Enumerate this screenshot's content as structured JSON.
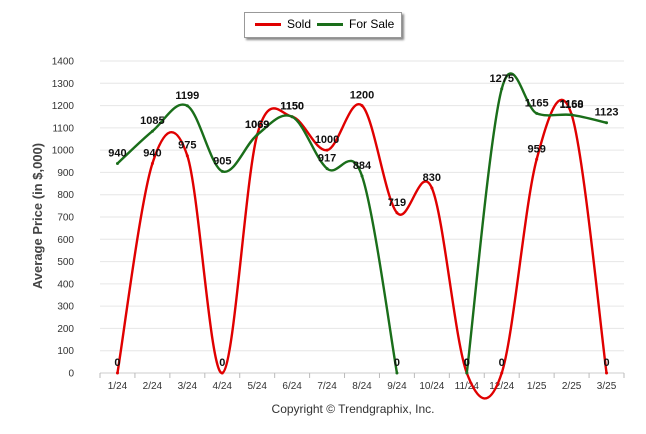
{
  "chart_data": {
    "type": "line",
    "ylabel": "Average Price (in $,000)",
    "ylim": [
      0,
      1400
    ],
    "yticks": [
      0,
      100,
      200,
      300,
      400,
      500,
      600,
      700,
      800,
      900,
      1000,
      1100,
      1200,
      1300,
      1400
    ],
    "categories": [
      "1/24",
      "2/24",
      "3/24",
      "4/24",
      "5/24",
      "6/24",
      "7/24",
      "8/24",
      "9/24",
      "10/24",
      "11/24",
      "12/24",
      "1/25",
      "2/25",
      "3/25"
    ],
    "series": [
      {
        "name": "Sold",
        "color": "#e00000",
        "values": [
          0,
          940,
          975,
          0,
          1069,
          1150,
          1000,
          1200,
          719,
          830,
          0,
          0,
          959,
          1160,
          0
        ]
      },
      {
        "name": "For Sale",
        "color": "#1a6e1a",
        "values": [
          940,
          1085,
          1199,
          905,
          1069,
          1150,
          917,
          884,
          0,
          null,
          0,
          1275,
          1165,
          1158,
          1123
        ]
      }
    ],
    "grid": true,
    "legend_position": "top-center"
  },
  "legend": {
    "sold_label": "Sold",
    "forsale_label": "For Sale"
  },
  "footer": {
    "copyright": "Copyright © Trendgraphix, Inc."
  }
}
